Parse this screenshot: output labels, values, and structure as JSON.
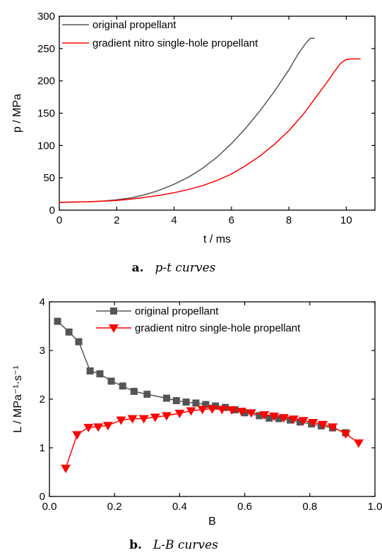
{
  "chart_data": [
    {
      "type": "line",
      "xlabel": "t / ms",
      "ylabel": "p / MPa",
      "xlim": [
        0,
        11
      ],
      "ylim": [
        0,
        300
      ],
      "xticks": [
        "0",
        "2",
        "4",
        "6",
        "8",
        "10"
      ],
      "yticks": [
        "0",
        "50",
        "100",
        "150",
        "200",
        "250",
        "300"
      ],
      "legend_position": "top-left",
      "caption": {
        "letter": "a.",
        "text": "p-t curves"
      },
      "series": [
        {
          "name": "original propellant",
          "color": "#555555",
          "x": [
            0,
            0.5,
            1,
            1.5,
            2,
            2.5,
            3,
            3.5,
            4,
            4.5,
            5,
            5.5,
            6,
            6.5,
            7,
            7.5,
            8,
            8.3,
            8.6,
            8.75,
            8.9
          ],
          "y": [
            12,
            12.5,
            13,
            14,
            16,
            19,
            24,
            31,
            40,
            51,
            65,
            82,
            103,
            127,
            154,
            184,
            217,
            240,
            259,
            266,
            266
          ]
        },
        {
          "name": "gradient nitro single-hole propellant",
          "color": "#ff0000",
          "x": [
            0,
            0.5,
            1,
            1.5,
            2,
            2.5,
            3,
            3.5,
            4,
            4.5,
            5,
            5.5,
            6,
            6.5,
            7,
            7.5,
            8,
            8.5,
            9,
            9.3,
            9.6,
            9.8,
            10,
            10.2,
            10.5
          ],
          "y": [
            12,
            12.5,
            13,
            14,
            15,
            17,
            20,
            23,
            27,
            32,
            38,
            46,
            56,
            69,
            84,
            102,
            123,
            148,
            178,
            196,
            215,
            227,
            233,
            234,
            234
          ]
        }
      ]
    },
    {
      "type": "line",
      "xlabel": "B",
      "ylabel": "L / MPa⁻¹·s⁻¹",
      "xlim": [
        0,
        1.0
      ],
      "ylim": [
        0,
        4
      ],
      "xticks": [
        "0.0",
        "0.2",
        "0.4",
        "0.6",
        "0.8",
        "1.0"
      ],
      "yticks": [
        "0",
        "1",
        "2",
        "3",
        "4"
      ],
      "legend_position": "top-center",
      "caption": {
        "letter": "b.",
        "text": "L-B curves"
      },
      "series": [
        {
          "name": "original propellant",
          "color": "#555555",
          "marker": "square",
          "x": [
            0.025,
            0.06,
            0.09,
            0.125,
            0.155,
            0.19,
            0.225,
            0.26,
            0.3,
            0.36,
            0.39,
            0.42,
            0.45,
            0.48,
            0.51,
            0.54,
            0.57,
            0.6,
            0.645,
            0.675,
            0.705,
            0.74,
            0.77,
            0.805,
            0.835,
            0.87,
            0.91
          ],
          "y": [
            3.6,
            3.38,
            3.18,
            2.58,
            2.52,
            2.37,
            2.27,
            2.16,
            2.1,
            2.02,
            1.97,
            1.94,
            1.92,
            1.89,
            1.86,
            1.83,
            1.78,
            1.72,
            1.66,
            1.61,
            1.6,
            1.57,
            1.53,
            1.49,
            1.45,
            1.41,
            1.31
          ]
        },
        {
          "name": "gradient nitro single-hole propellant",
          "color": "#ff0000",
          "marker": "triangle-down",
          "x": [
            0.05,
            0.085,
            0.12,
            0.15,
            0.18,
            0.22,
            0.255,
            0.29,
            0.325,
            0.36,
            0.4,
            0.435,
            0.47,
            0.5,
            0.53,
            0.56,
            0.59,
            0.62,
            0.66,
            0.69,
            0.72,
            0.75,
            0.78,
            0.81,
            0.84,
            0.87,
            0.91,
            0.95
          ],
          "y": [
            0.58,
            1.27,
            1.42,
            1.43,
            1.46,
            1.57,
            1.6,
            1.6,
            1.63,
            1.66,
            1.71,
            1.76,
            1.79,
            1.8,
            1.79,
            1.78,
            1.75,
            1.72,
            1.68,
            1.65,
            1.62,
            1.59,
            1.56,
            1.52,
            1.48,
            1.43,
            1.29,
            1.1
          ]
        }
      ]
    }
  ]
}
